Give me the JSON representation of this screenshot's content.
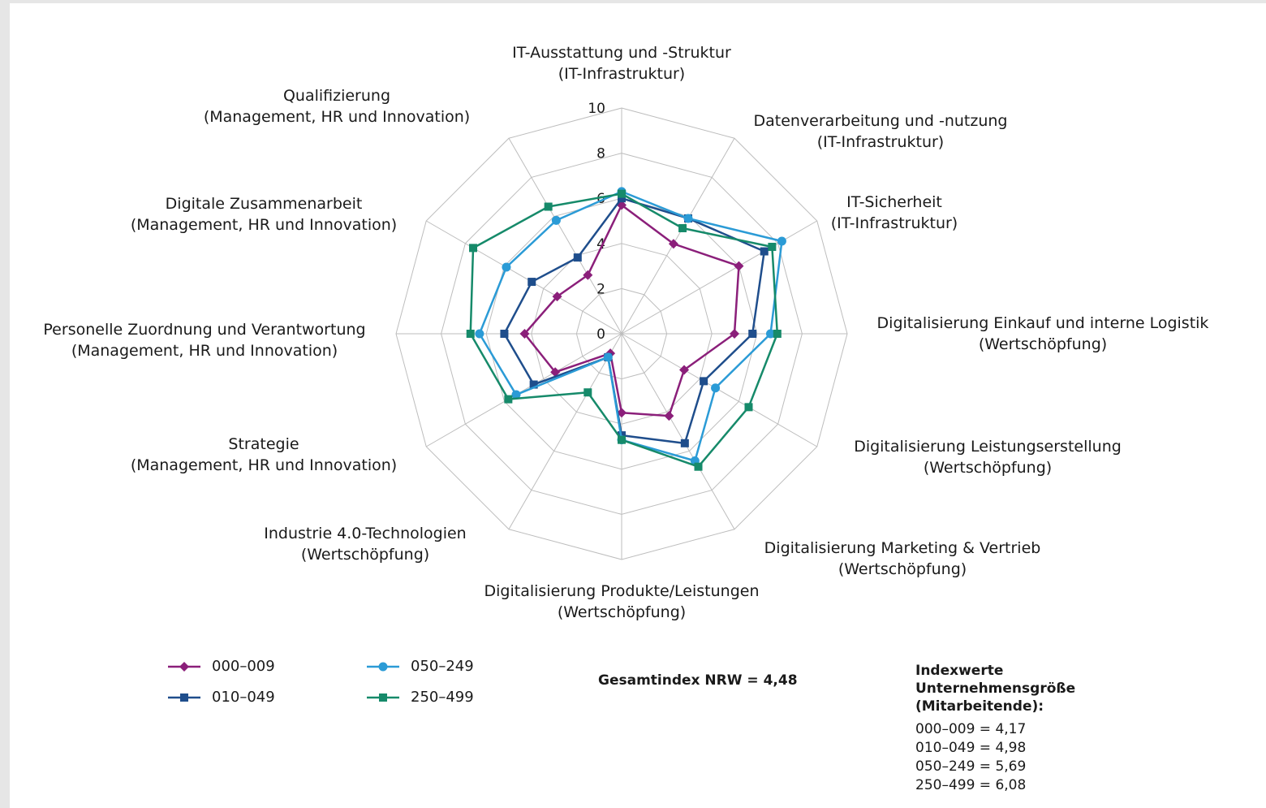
{
  "chart_data": {
    "type": "radar",
    "rmin": 0,
    "rmax": 10,
    "ticks": [
      "0",
      "2",
      "4",
      "6",
      "8",
      "10"
    ],
    "grid": true,
    "axes": [
      {
        "name": "IT-Ausstattung und -Struktur",
        "group": "(IT-Infrastruktur)"
      },
      {
        "name": "Datenverarbeitung und -nutzung",
        "group": "(IT-Infrastruktur)"
      },
      {
        "name": "IT-Sicherheit",
        "group": "(IT-Infrastruktur)"
      },
      {
        "name": "Digitalisierung Einkauf und interne Logistik",
        "group": "(Wertschöpfung)"
      },
      {
        "name": "Digitalisierung Leistungserstellung",
        "group": "(Wertschöpfung)"
      },
      {
        "name": "Digitalisierung Marketing & Vertrieb",
        "group": "(Wertschöpfung)"
      },
      {
        "name": "Digitalisierung Produkte/Leistungen",
        "group": "(Wertschöpfung)"
      },
      {
        "name": "Industrie 4.0-Technologien",
        "group": "(Wertschöpfung)"
      },
      {
        "name": "Strategie",
        "group": "(Management, HR und Innovation)"
      },
      {
        "name": "Personelle Zuordnung und Verantwortung",
        "group": "(Management, HR und Innovation)"
      },
      {
        "name": "Digitale Zusammenarbeit",
        "group": "(Management, HR und Innovation)"
      },
      {
        "name": "Qualifizierung",
        "group": "(Management, HR und Innovation)"
      }
    ],
    "series": [
      {
        "name": "000–009",
        "color": "#8b1f7a",
        "marker": "diamond",
        "values": [
          5.7,
          4.6,
          6.0,
          5.0,
          3.2,
          4.2,
          3.5,
          1.0,
          3.4,
          4.3,
          3.3,
          3.0
        ]
      },
      {
        "name": "010–049",
        "color": "#1f4e8c",
        "marker": "square",
        "values": [
          6.0,
          5.9,
          7.3,
          5.8,
          4.2,
          5.6,
          4.5,
          1.2,
          4.5,
          5.2,
          4.6,
          3.9
        ]
      },
      {
        "name": "050–249",
        "color": "#2b9bd6",
        "marker": "circle",
        "values": [
          6.3,
          5.9,
          8.2,
          6.6,
          4.8,
          6.5,
          4.7,
          1.2,
          5.4,
          6.3,
          5.9,
          5.8
        ]
      },
      {
        "name": "250–499",
        "color": "#168a6a",
        "marker": "square",
        "values": [
          6.2,
          5.4,
          7.7,
          6.9,
          6.5,
          6.8,
          4.7,
          3.0,
          5.8,
          6.7,
          7.6,
          6.5
        ]
      }
    ]
  },
  "summary": {
    "gesamtindex": "Gesamtindex NRW = 4,48",
    "index_title": "Indexwerte\nUnternehmensgröße\n(Mitarbeitende):",
    "index_values": [
      "000–009 = 4,17",
      "010–049 = 4,98",
      "050–249 = 5,69",
      "250–499 = 6,08"
    ]
  }
}
